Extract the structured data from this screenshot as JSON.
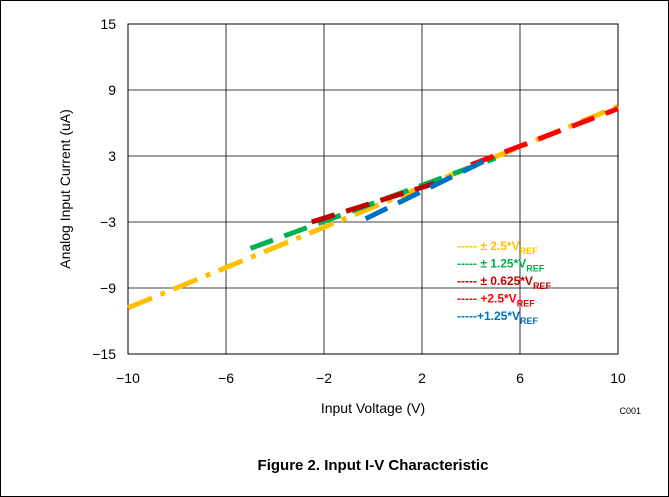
{
  "chart_data": {
    "type": "line",
    "xlabel": "Input Voltage (V)",
    "ylabel": "Analog Input Current (uA)",
    "xlim": [
      -10,
      10
    ],
    "ylim": [
      -15,
      15
    ],
    "xticks": [
      "−10",
      "−6",
      "−2",
      "2",
      "6",
      "10"
    ],
    "yticks": [
      "15",
      "9",
      "3",
      "−3",
      "−9",
      "−15"
    ],
    "grid": true,
    "legend_position": "bottom-right",
    "code_label": "C001",
    "caption": "Figure 2. Input I-V Characteristic",
    "series": [
      {
        "label_prefix": "----- ± 2.5*V",
        "label_sub": "REF",
        "color": "#ffc000",
        "bold": false,
        "x": [
          -10,
          10
        ],
        "y": [
          -10.8,
          7.5
        ]
      },
      {
        "label_prefix": "-----  ± 1.25*V",
        "label_sub": "REF",
        "color": "#00b050",
        "bold": true,
        "x": [
          -5,
          5
        ],
        "y": [
          -5.4,
          2.8
        ]
      },
      {
        "label_prefix": "----- ± 0.625*V",
        "label_sub": "REF",
        "color": "#c00000",
        "bold": true,
        "x": [
          -2.5,
          2.5
        ],
        "y": [
          -3.0,
          0.5
        ]
      },
      {
        "label_prefix": "----- +2.5*V",
        "label_sub": "REF",
        "color": "#ff0000",
        "bold": true,
        "x": [
          4,
          10
        ],
        "y": [
          2.2,
          7.3
        ]
      },
      {
        "label_prefix": "-----+1.25*V",
        "label_sub": "REF",
        "color": "#0070c0",
        "bold": true,
        "x": [
          -0.3,
          4.5
        ],
        "y": [
          -2.7,
          2.5
        ]
      }
    ]
  }
}
